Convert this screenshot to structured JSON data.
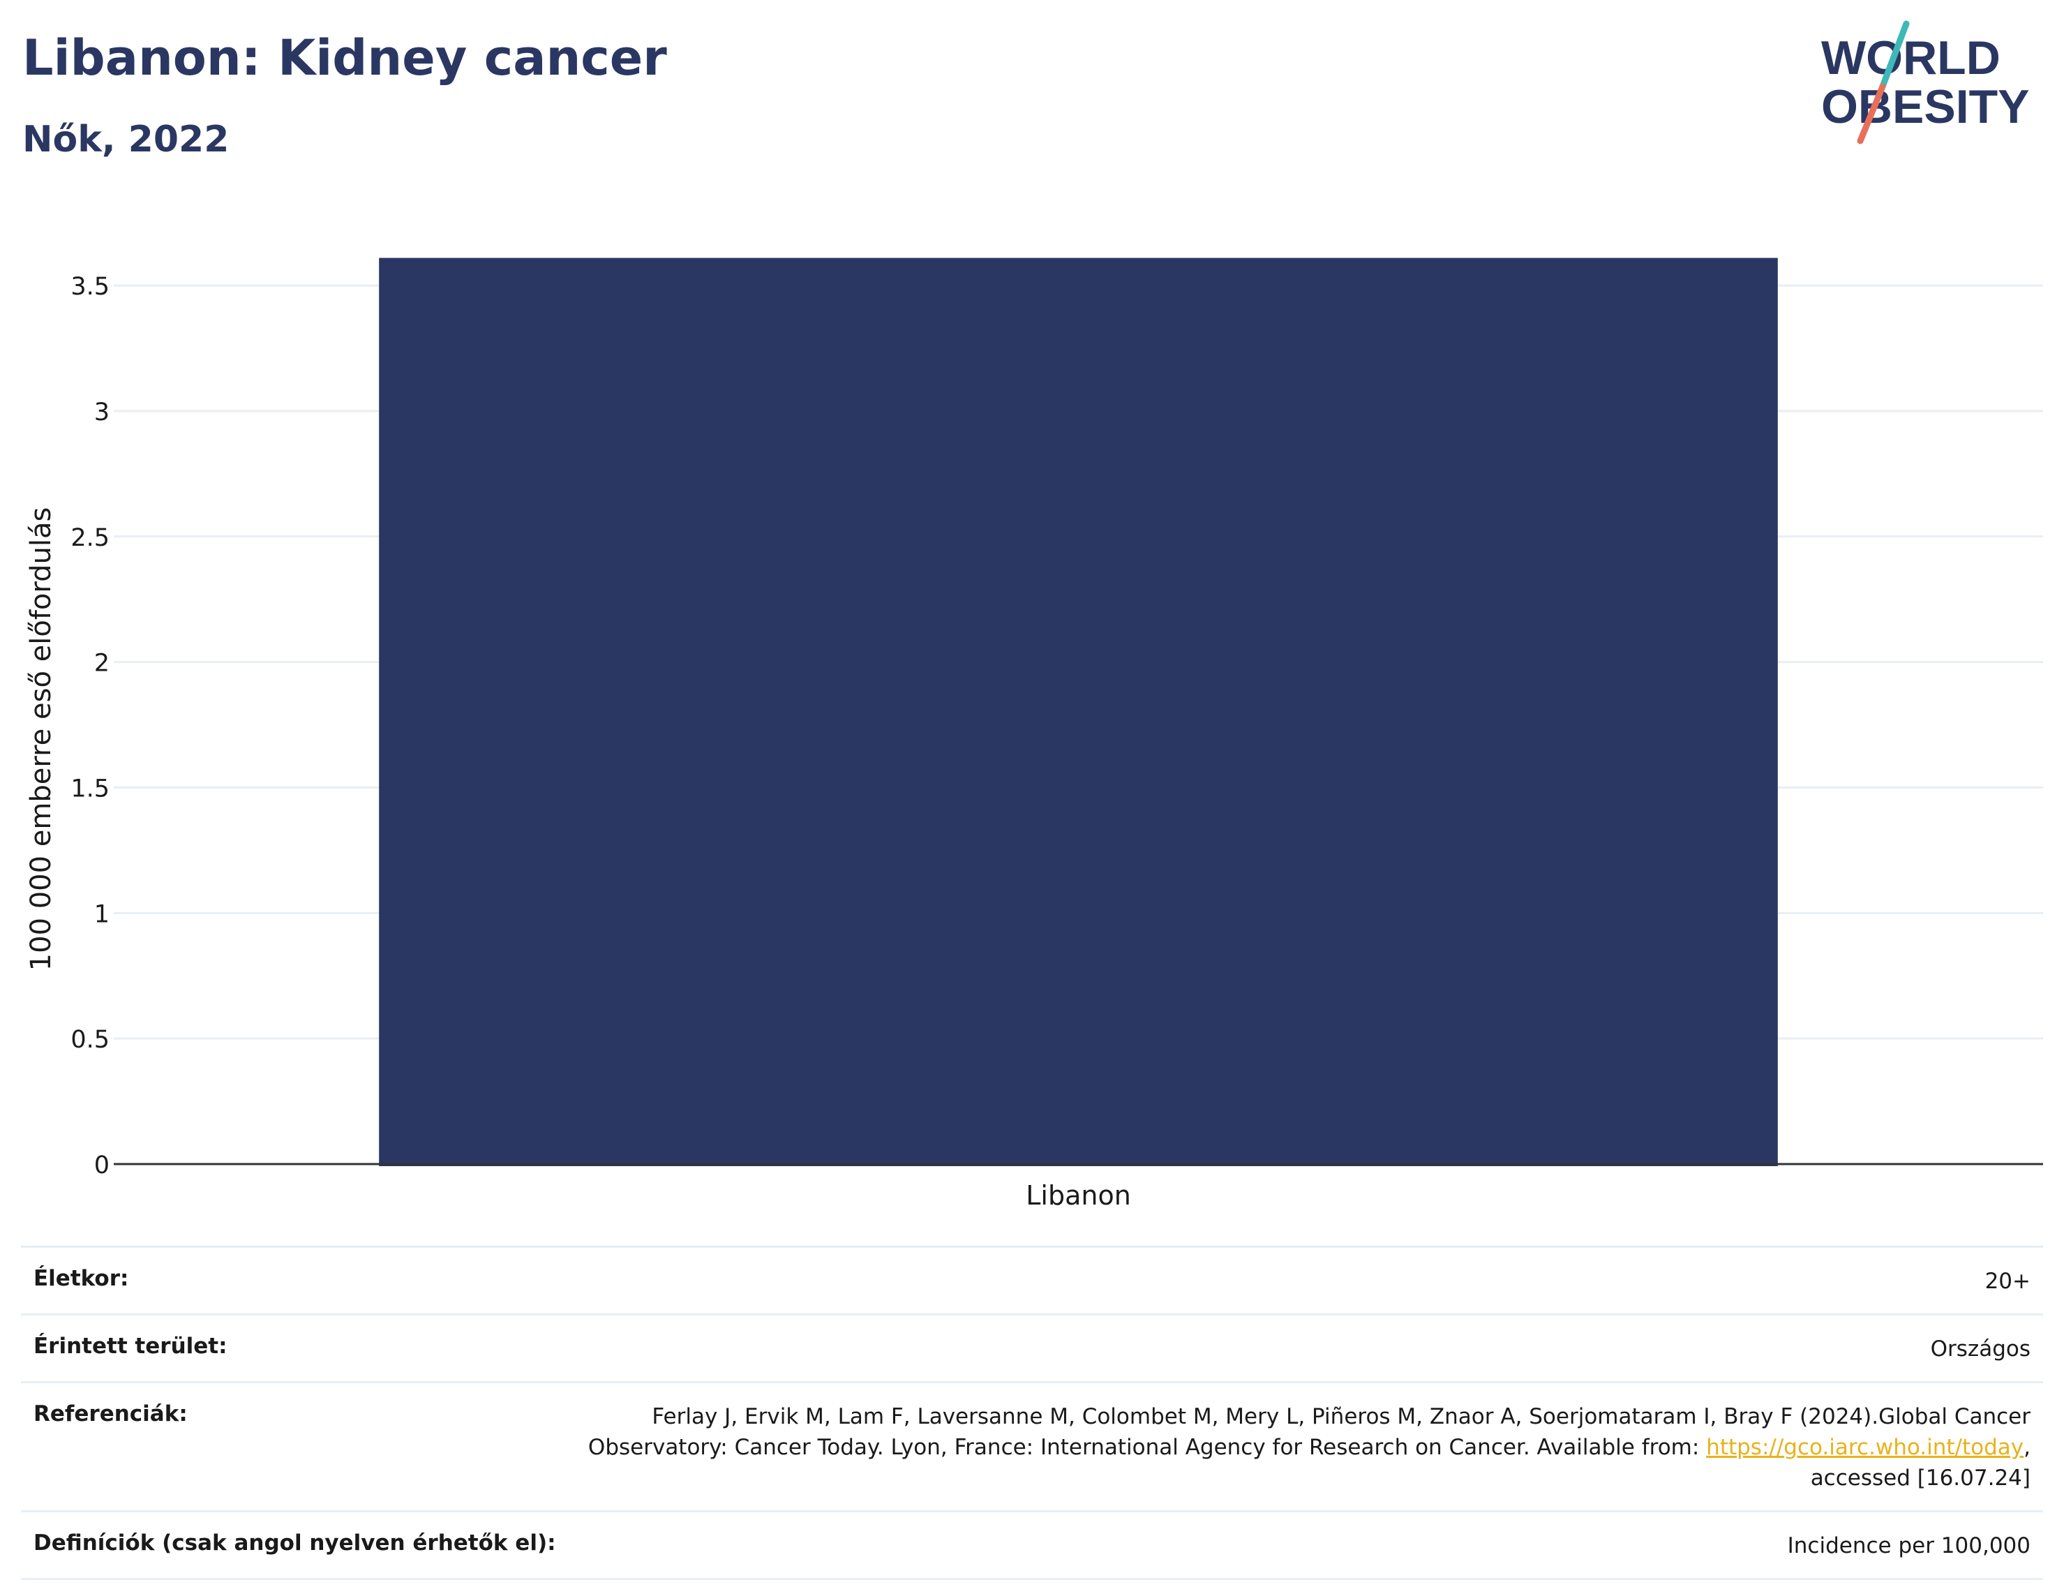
{
  "header": {
    "title": "Libanon: Kidney cancer",
    "subtitle": "Nők, 2022"
  },
  "logo": {
    "line1": "WORLD",
    "line2": "OBESITY",
    "text_color": "#2a3762",
    "slash_top_color": "#3fb8b8",
    "slash_bottom_color": "#e8705a"
  },
  "chart_data": {
    "type": "bar",
    "categories": [
      "Libanon"
    ],
    "values": [
      3.61
    ],
    "title": "Libanon: Kidney cancer",
    "subtitle": "Nők, 2022",
    "xlabel": "",
    "ylabel": "100 000 emberre eső előfordulás",
    "ylim": [
      0,
      3.72
    ],
    "yticks": [
      0,
      0.5,
      1,
      1.5,
      2,
      2.5,
      3,
      3.5
    ],
    "ytick_labels": [
      "0",
      "0.5",
      "1",
      "1.5",
      "2",
      "2.5",
      "3",
      "3.5"
    ],
    "grid": true,
    "bar_color": "#2a3762"
  },
  "info": {
    "age_label": "Életkor:",
    "age_value": "20+",
    "area_label": "Érintett terület:",
    "area_value": "Országos",
    "ref_label": "Referenciák:",
    "ref_line1": "Ferlay J, Ervik M, Lam F, Laversanne M, Colombet M, Mery L, Piñeros M, Znaor A, Soerjomataram I, Bray F (2024).Global Cancer",
    "ref_line2_before": "Observatory: Cancer Today. Lyon, France: International Agency for Research on Cancer. Available from: ",
    "ref_link": "https://gco.iarc.who.int/today",
    "ref_line2_after": ",",
    "ref_line3": "accessed [16.07.24]",
    "def_label": "Definíciók (csak angol nyelven érhetők el):",
    "def_value": "Incidence per 100,000"
  }
}
